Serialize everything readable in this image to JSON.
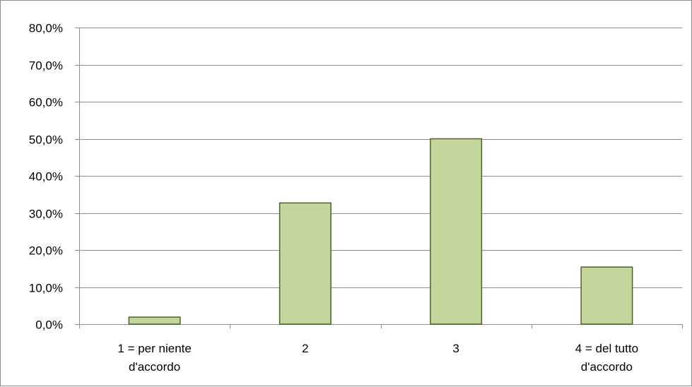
{
  "chart_data": {
    "type": "bar",
    "title": "",
    "xlabel": "",
    "ylabel": "",
    "categories": [
      [
        "1 = per niente",
        "d'accordo"
      ],
      [
        "2"
      ],
      [
        "3"
      ],
      [
        "4 = del tutto",
        "d'accordo"
      ]
    ],
    "values": [
      1.9,
      32.7,
      50.0,
      15.4
    ],
    "ylim": [
      0,
      80
    ],
    "yticks": [
      0,
      10,
      20,
      30,
      40,
      50,
      60,
      70,
      80
    ],
    "ytick_labels": [
      "0,0%",
      "10,0%",
      "20,0%",
      "30,0%",
      "40,0%",
      "50,0%",
      "60,0%",
      "70,0%",
      "80,0%"
    ],
    "grid": true,
    "legend": "none",
    "colors": {
      "bar_fill": "#c3d69b",
      "bar_stroke": "#4f6228",
      "grid": "#8c8c8c",
      "axis": "#8c8c8c"
    }
  }
}
